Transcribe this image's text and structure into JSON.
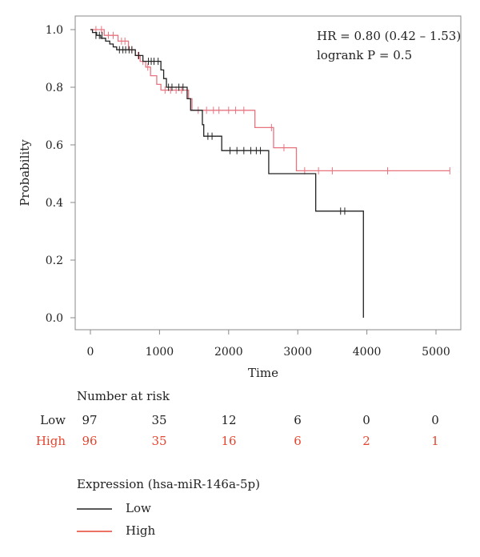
{
  "chart_data": {
    "type": "line",
    "subtype": "kaplan-meier",
    "title": "",
    "xlabel": "Time",
    "ylabel": "Probability",
    "xlim": [
      0,
      5200
    ],
    "ylim": [
      0,
      1.0
    ],
    "x_ticks": [
      0,
      1000,
      2000,
      3000,
      4000,
      5000
    ],
    "x_tick_labels": [
      "0",
      "1000",
      "2000",
      "3000",
      "4000",
      "5000"
    ],
    "y_ticks": [
      0.0,
      0.2,
      0.4,
      0.6,
      0.8,
      1.0
    ],
    "y_tick_labels": [
      "0.0",
      "0.2",
      "0.4",
      "0.6",
      "0.8",
      "1.0"
    ],
    "grid": false,
    "annotations": [
      "HR = 0.80 (0.42 – 1.53)",
      "logrank P = 0.5"
    ],
    "series": [
      {
        "name": "Low",
        "color": "#222222",
        "steps": [
          [
            0,
            1.0
          ],
          [
            30,
            0.99
          ],
          [
            90,
            0.98
          ],
          [
            150,
            0.97
          ],
          [
            220,
            0.96
          ],
          [
            280,
            0.95
          ],
          [
            330,
            0.94
          ],
          [
            380,
            0.93
          ],
          [
            650,
            0.91
          ],
          [
            760,
            0.89
          ],
          [
            1020,
            0.86
          ],
          [
            1060,
            0.83
          ],
          [
            1100,
            0.8
          ],
          [
            1400,
            0.76
          ],
          [
            1450,
            0.72
          ],
          [
            1620,
            0.67
          ],
          [
            1640,
            0.63
          ],
          [
            1900,
            0.58
          ],
          [
            2580,
            0.5
          ],
          [
            3260,
            0.37
          ],
          [
            3950,
            0.0
          ]
        ],
        "end_x": 3950,
        "censor_marks": [
          [
            80,
            0.98
          ],
          [
            130,
            0.98
          ],
          [
            170,
            0.98
          ],
          [
            420,
            0.93
          ],
          [
            470,
            0.93
          ],
          [
            510,
            0.93
          ],
          [
            560,
            0.93
          ],
          [
            600,
            0.93
          ],
          [
            700,
            0.91
          ],
          [
            840,
            0.89
          ],
          [
            880,
            0.89
          ],
          [
            920,
            0.89
          ],
          [
            980,
            0.89
          ],
          [
            1130,
            0.8
          ],
          [
            1180,
            0.8
          ],
          [
            1280,
            0.8
          ],
          [
            1340,
            0.8
          ],
          [
            1700,
            0.63
          ],
          [
            1760,
            0.63
          ],
          [
            2020,
            0.58
          ],
          [
            2120,
            0.58
          ],
          [
            2220,
            0.58
          ],
          [
            2320,
            0.58
          ],
          [
            2400,
            0.58
          ],
          [
            2460,
            0.58
          ],
          [
            3620,
            0.37
          ],
          [
            3680,
            0.37
          ]
        ]
      },
      {
        "name": "High",
        "color": "#e8737f",
        "steps": [
          [
            0,
            1.0
          ],
          [
            200,
            0.98
          ],
          [
            400,
            0.96
          ],
          [
            550,
            0.93
          ],
          [
            650,
            0.91
          ],
          [
            720,
            0.89
          ],
          [
            800,
            0.87
          ],
          [
            870,
            0.84
          ],
          [
            960,
            0.81
          ],
          [
            1020,
            0.79
          ],
          [
            1420,
            0.76
          ],
          [
            1470,
            0.72
          ],
          [
            2380,
            0.66
          ],
          [
            2650,
            0.59
          ],
          [
            2980,
            0.51
          ]
        ],
        "end_x": 5200,
        "censor_marks": [
          [
            80,
            1.0
          ],
          [
            160,
            1.0
          ],
          [
            260,
            0.98
          ],
          [
            330,
            0.98
          ],
          [
            450,
            0.96
          ],
          [
            500,
            0.96
          ],
          [
            600,
            0.93
          ],
          [
            690,
            0.91
          ],
          [
            760,
            0.89
          ],
          [
            830,
            0.87
          ],
          [
            1080,
            0.79
          ],
          [
            1160,
            0.79
          ],
          [
            1240,
            0.79
          ],
          [
            1320,
            0.79
          ],
          [
            1560,
            0.72
          ],
          [
            1680,
            0.72
          ],
          [
            1780,
            0.72
          ],
          [
            1860,
            0.72
          ],
          [
            2000,
            0.72
          ],
          [
            2100,
            0.72
          ],
          [
            2220,
            0.72
          ],
          [
            2620,
            0.66
          ],
          [
            2800,
            0.59
          ],
          [
            3100,
            0.51
          ],
          [
            3300,
            0.51
          ],
          [
            3500,
            0.51
          ],
          [
            4300,
            0.51
          ],
          [
            5200,
            0.51
          ]
        ]
      }
    ]
  },
  "risk_table": {
    "title": "Number at risk",
    "rows": [
      {
        "label": "Low",
        "color": "#222222",
        "values": [
          "97",
          "35",
          "12",
          "6",
          "0",
          "0"
        ]
      },
      {
        "label": "High",
        "color": "#e5452f",
        "values": [
          "96",
          "35",
          "16",
          "6",
          "2",
          "1"
        ]
      }
    ]
  },
  "legend": {
    "title": "Expression (hsa-miR-146a-5p)",
    "entries": [
      {
        "label": "Low",
        "color": "#222222"
      },
      {
        "label": "High",
        "color": "#e5452f"
      }
    ]
  }
}
